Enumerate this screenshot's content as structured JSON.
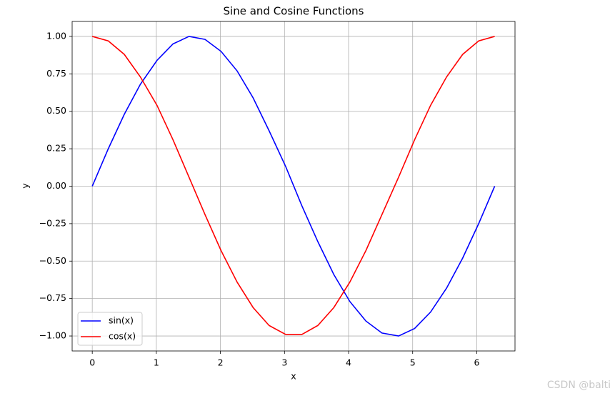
{
  "chart_data": {
    "type": "line",
    "title": "Sine and Cosine Functions",
    "x_label": "x",
    "y_label": "y",
    "x": [
      0,
      0.25,
      0.5,
      0.75,
      1.01,
      1.26,
      1.51,
      1.76,
      2.01,
      2.26,
      2.51,
      2.76,
      3.02,
      3.27,
      3.52,
      3.77,
      4.02,
      4.27,
      4.52,
      4.78,
      5.03,
      5.28,
      5.53,
      5.78,
      6.03,
      6.28
    ],
    "series": [
      {
        "name": "sin(x)",
        "color": "#0000ff",
        "values": [
          0,
          0.25,
          0.48,
          0.68,
          0.84,
          0.95,
          1.0,
          0.98,
          0.9,
          0.77,
          0.59,
          0.37,
          0.13,
          -0.13,
          -0.37,
          -0.59,
          -0.77,
          -0.9,
          -0.98,
          -1.0,
          -0.95,
          -0.84,
          -0.68,
          -0.48,
          -0.25,
          0
        ]
      },
      {
        "name": "cos(x)",
        "color": "#ff0000",
        "values": [
          1,
          0.97,
          0.88,
          0.73,
          0.54,
          0.31,
          0.06,
          -0.19,
          -0.43,
          -0.64,
          -0.81,
          -0.93,
          -0.99,
          -0.99,
          -0.93,
          -0.81,
          -0.64,
          -0.43,
          -0.19,
          0.06,
          0.31,
          0.54,
          0.73,
          0.88,
          0.97,
          1
        ]
      }
    ],
    "xlim": [
      -0.314,
      6.597
    ],
    "ylim": [
      -1.1,
      1.1
    ],
    "xticks": [
      0,
      1,
      2,
      3,
      4,
      5,
      6
    ],
    "yticks": [
      {
        "value": -1,
        "label": "−1.00"
      },
      {
        "value": -0.75,
        "label": "−0.75"
      },
      {
        "value": -0.5,
        "label": "−0.50"
      },
      {
        "value": -0.25,
        "label": "−0.25"
      },
      {
        "value": 0,
        "label": "0.00"
      },
      {
        "value": 0.25,
        "label": "0.25"
      },
      {
        "value": 0.5,
        "label": "0.50"
      },
      {
        "value": 0.75,
        "label": "0.75"
      },
      {
        "value": 1,
        "label": "1.00"
      }
    ],
    "grid": true,
    "legend": "lower left",
    "watermark": "CSDN @balti"
  }
}
